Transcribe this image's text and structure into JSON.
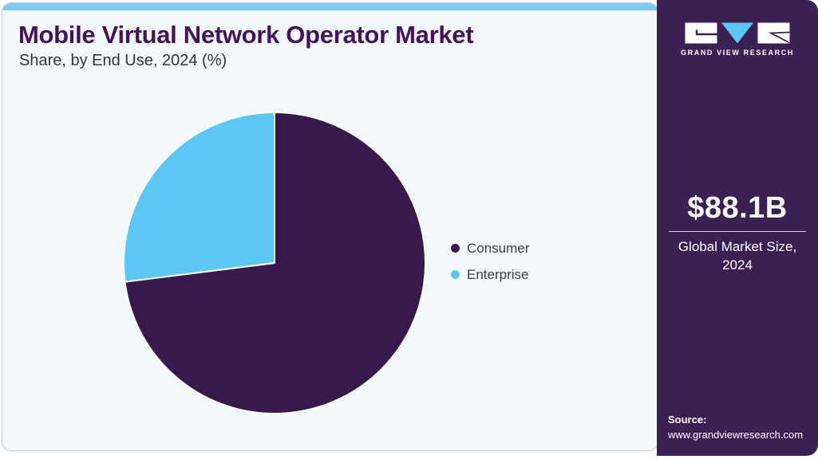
{
  "chart_data": {
    "type": "pie",
    "title": "Mobile Virtual Network Operator Market",
    "subtitle": "Share, by End Use, 2024 (%)",
    "labels": [
      "Consumer",
      "Enterprise"
    ],
    "values": [
      73,
      27
    ],
    "units": "%",
    "colors": [
      "#37194e",
      "#5cc7f2"
    ],
    "start_angle": "12-oclock",
    "direction": "clockwise",
    "legend_position": "right",
    "slice_border_color": "#ffffff"
  },
  "sidebar": {
    "brand": "GRAND VIEW RESEARCH",
    "market_size_value": "$88.1B",
    "market_size_label": "Global Market Size, 2024",
    "source_label": "Source:",
    "source_url": "www.grandviewresearch.com"
  },
  "theme": {
    "card_background": "#f2f8fb",
    "card_border": "#c9ced6",
    "accent_strip": "#7fcbec",
    "title_color": "#45125e",
    "subtitle_color": "#33333b",
    "sidebar_background": "#3b2053",
    "sidebar_text": "#ffffff"
  }
}
